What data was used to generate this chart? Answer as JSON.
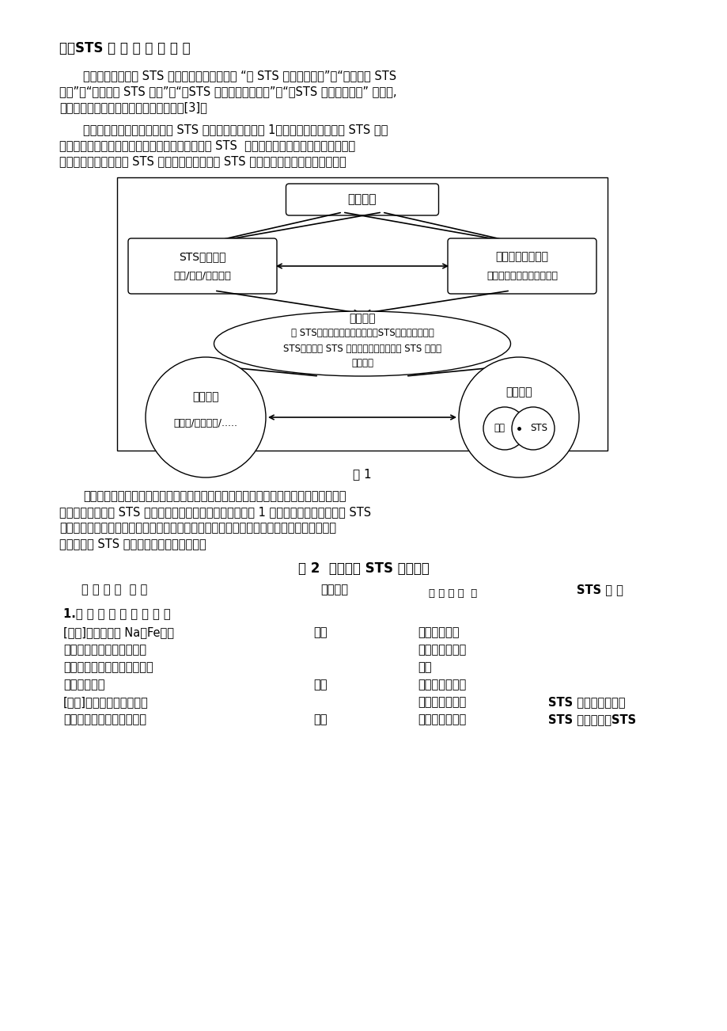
{
  "bg_color": "#ffffff",
  "text_color": "#000000",
  "title": "三、STS 教 学 设 计 其 分 析",
  "para1_line1": "当前在科学课程中 STS 教育的教学模式主要有 “以 STS 激发学习动机”、“随机加入 STS",
  "para1_line2": "内容”、“刻意加入 STS 内容”、“以STS 内容贯穿单一课程”、“以STS 内容传达科学” 等较多,",
  "para1_line3": "并且将两种或者多种模式相结合进行教学[3]。",
  "para2_line1": "可以构建出在科学教育中渗透 STS 教育的基本模型（图 1），以学科教育目标与 STS 教学",
  "para2_line2": "目标为指导，开发选取基于学科内容的各个方面的 STS  内容，基于此选择合适的教学方法，",
  "para2_line3": "确定将学科教学内容与 STS 教育内容组合的最佳 STS 教育模式，从而进行课堂教学。",
  "fig_caption": "图 1",
  "para3_line1": "课堂教学是基础教育教学的主体构成，是化学教学中最普遍的教学活动。在化学课堂教",
  "para3_line2": "学中进行合理渗透 STS 教育的教学设计。基于此，可以以图 1 所示的模型，来分析渗透 STS",
  "para3_line3": "教育的化学课堂教学，进行教学设计分析。下面以第三者第一节：金属的化学性质中的金属",
  "para3_line4": "铝为例进行 STS 教学案例设计，以供参考。",
  "table_title": "表 2  金属铝的 STS 教学设计",
  "col1_header": "教 师 活 动  环 节",
  "col2_header": "学生活动",
  "col3_header": "设 计 意 图  直",
  "col4_header": "STS 分 析",
  "row1_col1": "1.金 属 材 料 讨 论 的 引 出",
  "row2_col1": "[引入]前期讨论了 Na、Fe，同",
  "row2_col2": "听讲",
  "row2_col3": "接引入新课，",
  "row3_col1": "学们初步感受到了金属与人",
  "row3_col3": "继续金属话题的",
  "row4_col1": "类的密切关系，今天将继续金",
  "row4_col3": "讨论",
  "row5_col1": "属话题的讨论",
  "row5_col2": "听讲",
  "row5_col3": "从历史的角度和",
  "row6_col1": "[展示]金属在历史中的地位",
  "row6_col3": "现代电子时代的",
  "row6_col4": "STS 内容：科学史，",
  "row7_col1": "工具的变迁是人类文明进步",
  "row7_col2": "听讲",
  "row7_col3": "角度，阐述金属",
  "row7_col4": "STS 教学目标：STS",
  "diag_box1_label": "教学目标",
  "diag_box2_label1": "STS教学目标",
  "diag_box2_label2": "意识/知识/实践能力",
  "diag_box3_label1": "学科课堂教学目标",
  "diag_box3_label2": "（由教材内容、课标决定）",
  "diag_ell_label0": "教学模式",
  "diag_ell_label1": "以 STS激发学习动机、随机加入STS内容、刻意加入",
  "diag_ell_label2": "STS内容、以 STS 内容贯穿单一课程、以 STS 内容传",
  "diag_ell_label3": "达科学等",
  "diag_circ_left_label1": "教学方法",
  "diag_circ_left_label2": "探究式/问题解决/.....",
  "diag_circ_right_label": "教学内容",
  "diag_sc1_label": "学科",
  "diag_sc2_label": "STS"
}
